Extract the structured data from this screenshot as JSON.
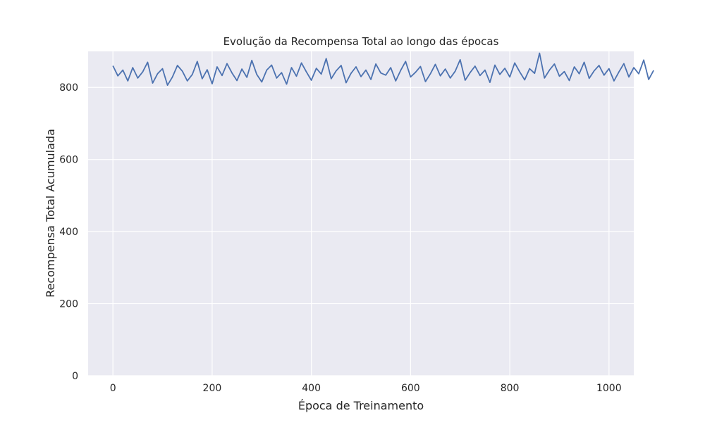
{
  "chart_data": {
    "type": "line",
    "title": "Evolução da Recompensa Total ao longo das épocas",
    "xlabel": "Época de Treinamento",
    "ylabel": "Recompensa Total Acumulada",
    "xlim": [
      -50,
      1050
    ],
    "ylim": [
      0,
      900
    ],
    "x_ticks": [
      0,
      200,
      400,
      600,
      800,
      1000
    ],
    "y_ticks": [
      0,
      200,
      400,
      600,
      800
    ],
    "x_tick_labels": [
      "0",
      "200",
      "400",
      "600",
      "800",
      "1000"
    ],
    "y_tick_labels": [
      "0",
      "200",
      "400",
      "600",
      "800"
    ],
    "grid": true,
    "style": "seaborn-darkgrid",
    "series": [
      {
        "color": "#4c72b0",
        "x_start": 0,
        "x_step": 10,
        "values": [
          860,
          832,
          848,
          818,
          855,
          826,
          843,
          870,
          812,
          838,
          852,
          806,
          829,
          861,
          845,
          818,
          836,
          872,
          824,
          849,
          810,
          857,
          833,
          866,
          840,
          819,
          851,
          828,
          875,
          836,
          815,
          848,
          862,
          826,
          841,
          809,
          855,
          831,
          868,
          843,
          820,
          853,
          837,
          880,
          824,
          846,
          861,
          813,
          839,
          857,
          830,
          848,
          822,
          865,
          840,
          834,
          855,
          818,
          847,
          872,
          829,
          842,
          858,
          816,
          838,
          864,
          832,
          851,
          826,
          845,
          877,
          820,
          841,
          859,
          833,
          848,
          814,
          862,
          836,
          853,
          829,
          868,
          843,
          821,
          852,
          839,
          895,
          826,
          848,
          865,
          831,
          844,
          819,
          857,
          838,
          870,
          825,
          846,
          861,
          834,
          852,
          818,
          843,
          866,
          829,
          855,
          838,
          876,
          822,
          847
        ]
      }
    ]
  }
}
